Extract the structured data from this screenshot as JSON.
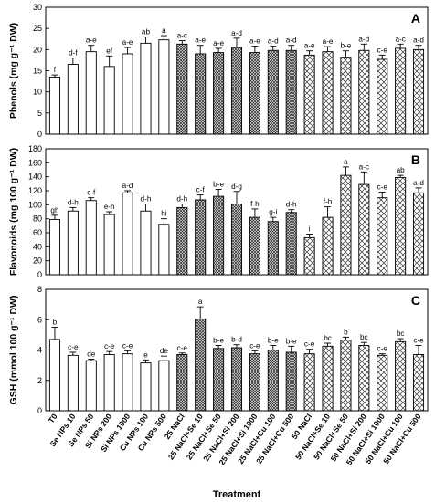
{
  "chart_data": [
    {
      "type": "bar",
      "panel": "A",
      "ylabel": "Phenols (mg g⁻¹ DW)",
      "ylim": [
        0,
        30
      ],
      "yticks": [
        0,
        5,
        10,
        15,
        20,
        25,
        30
      ],
      "categories": [
        "T0",
        "Se NPs 10",
        "Se NPs 50",
        "Si NPs 200",
        "Si NPs 1000",
        "Cu NPs 100",
        "Cu NPs 500",
        "25 NaCl",
        "25 NaCl+Se 10",
        "25 NaCl+Se 50",
        "25 NaCl+Si 200",
        "25 NaCl+Si 1000",
        "25 NaCl+Cu 100",
        "25 NaCl+Cu 500",
        "50 NaCl",
        "50 NaCl+Se 10",
        "50 NaCl+Se 50",
        "50 NaCl+Si 200",
        "50 NaCl+Si 1000",
        "50 NaCl+Cu 100",
        "50 NaCl+Cu 500"
      ],
      "values": [
        13.5,
        16.5,
        19.5,
        16.0,
        19.0,
        21.5,
        22.3,
        21.3,
        19.0,
        19.3,
        20.5,
        19.3,
        19.8,
        19.8,
        18.7,
        19.5,
        18.2,
        19.8,
        17.7,
        20.3,
        20.0
      ],
      "errors": [
        0.5,
        1.5,
        1.5,
        2.5,
        1.5,
        1.5,
        1.0,
        0.8,
        2.0,
        1.0,
        2.2,
        1.5,
        1.0,
        1.2,
        1.0,
        1.2,
        1.5,
        1.5,
        1.0,
        1.0,
        1.0
      ],
      "letters": [
        "f",
        "d-f",
        "a-e",
        "ef",
        "a-e",
        "ab",
        "a",
        "a-c",
        "a-e",
        "a-e",
        "a-d",
        "a-e",
        "a-d",
        "a-d",
        "a-e",
        "a-e",
        "b-e",
        "a-d",
        "c-e",
        "a-c",
        "a-d"
      ],
      "patterns": [
        "open",
        "open",
        "open",
        "open",
        "open",
        "open",
        "open",
        "dense",
        "dense",
        "dense",
        "dense",
        "dense",
        "dense",
        "dense",
        "cross",
        "cross",
        "cross",
        "cross",
        "cross",
        "cross",
        "cross"
      ]
    },
    {
      "type": "bar",
      "panel": "B",
      "ylabel": "Flavonoids (mg 100 g⁻¹ DW)",
      "ylim": [
        0,
        180
      ],
      "yticks": [
        0,
        20,
        40,
        60,
        80,
        100,
        120,
        140,
        160,
        180
      ],
      "categories": [
        "T0",
        "Se NPs 10",
        "Se NPs 50",
        "Si NPs 200",
        "Si NPs 1000",
        "Cu NPs 100",
        "Cu NPs 500",
        "25 NaCl",
        "25 NaCl+Se 10",
        "25 NaCl+Se 50",
        "25 NaCl+Si 200",
        "25 NaCl+Si 1000",
        "25 NaCl+Cu 100",
        "25 NaCl+Cu 500",
        "50 NaCl",
        "50 NaCl+Se 10",
        "50 NaCl+Se 50",
        "50 NaCl+Si 200",
        "50 NaCl+Si 1000",
        "50 NaCl+Cu 100",
        "50 NaCl+Cu 500"
      ],
      "values": [
        79,
        91,
        106,
        86,
        117,
        91,
        72,
        96,
        107,
        112,
        101,
        82,
        76,
        89,
        53,
        82,
        142,
        129,
        110,
        139,
        117
      ],
      "errors": [
        6,
        5,
        4,
        4,
        3,
        10,
        8,
        5,
        7,
        10,
        18,
        12,
        6,
        4,
        5,
        15,
        12,
        18,
        8,
        3,
        7
      ],
      "letters": [
        "gh",
        "d-h",
        "c-f",
        "e-h",
        "a-d",
        "d-h",
        "hi",
        "d-h",
        "c-f",
        "b-e",
        "d-g",
        "f-h",
        "g-i",
        "d-h",
        "i",
        "f-h",
        "a",
        "a-c",
        "c-e",
        "ab",
        "a-d"
      ],
      "patterns": [
        "open",
        "open",
        "open",
        "open",
        "open",
        "open",
        "open",
        "dense",
        "dense",
        "dense",
        "dense",
        "dense",
        "dense",
        "dense",
        "cross",
        "cross",
        "cross",
        "cross",
        "cross",
        "cross",
        "cross"
      ]
    },
    {
      "type": "bar",
      "panel": "C",
      "ylabel": "GSH (mmol 100 g⁻¹ DW)",
      "xlabel": "Treatment",
      "ylim": [
        0,
        8
      ],
      "yticks": [
        0,
        2,
        4,
        6,
        8
      ],
      "categories": [
        "T0",
        "Se NPs 10",
        "Se NPs 50",
        "Si NPs 200",
        "Si NPs 1000",
        "Cu NPs 100",
        "Cu NPs 500",
        "25 NaCl",
        "25 NaCl+Se 10",
        "25 NaCl+Se 50",
        "25 NaCl+Si 200",
        "25 NaCl+Si 1000",
        "25 NaCl+Cu 100",
        "25 NaCl+Cu 500",
        "50 NaCl",
        "50 NaCl+Se 10",
        "50 NaCl+Se 50",
        "50 NaCl+Si 200",
        "50 NaCl+Si 1000",
        "50 NaCl+Cu 100",
        "50 NaCl+Cu 500"
      ],
      "values": [
        4.7,
        3.65,
        3.3,
        3.7,
        3.75,
        3.15,
        3.3,
        3.7,
        6.05,
        4.1,
        4.15,
        3.75,
        4.0,
        3.85,
        3.75,
        4.25,
        4.65,
        4.3,
        3.65,
        4.55,
        3.7
      ],
      "errors": [
        0.8,
        0.2,
        0.1,
        0.2,
        0.2,
        0.2,
        0.3,
        0.1,
        0.8,
        0.2,
        0.2,
        0.2,
        0.3,
        0.4,
        0.3,
        0.2,
        0.2,
        0.2,
        0.1,
        0.2,
        0.6
      ],
      "letters": [
        "b",
        "c-e",
        "de",
        "c-e",
        "c-e",
        "e",
        "de",
        "c-e",
        "a",
        "b-e",
        "b-d",
        "c-e",
        "b-e",
        "b-e",
        "c-e",
        "bc",
        "b",
        "bc",
        "c-e",
        "bc",
        "c-e"
      ],
      "patterns": [
        "open",
        "open",
        "open",
        "open",
        "open",
        "open",
        "open",
        "dense",
        "dense",
        "dense",
        "dense",
        "dense",
        "dense",
        "dense",
        "cross",
        "cross",
        "cross",
        "cross",
        "cross",
        "cross",
        "cross"
      ]
    }
  ]
}
